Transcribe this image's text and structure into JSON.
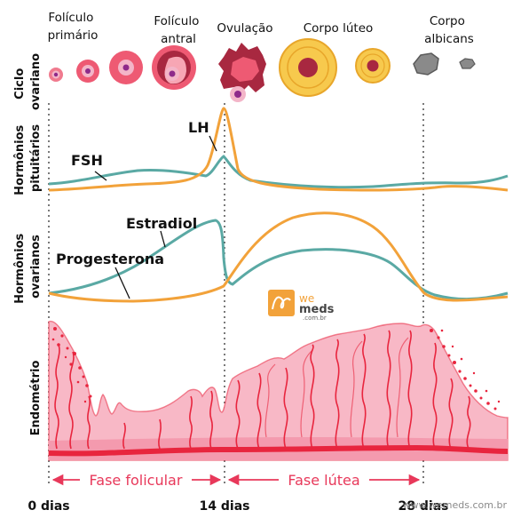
{
  "stages": [
    {
      "id": "primary",
      "label_lines": [
        "Folículo",
        "primário"
      ]
    },
    {
      "id": "antral",
      "label_lines": [
        "Folículo",
        "antral"
      ]
    },
    {
      "id": "ovulation",
      "label_lines": [
        "Ovulação"
      ]
    },
    {
      "id": "corpus_luteum",
      "label_lines": [
        "Corpo lúteo"
      ]
    },
    {
      "id": "corpus_albicans",
      "label_lines": [
        "Corpo",
        "albicans"
      ]
    }
  ],
  "rows": {
    "ovarian_cycle": [
      "Ciclo",
      "ovariano"
    ],
    "pituitary": [
      "Hormônios",
      "pituitários"
    ],
    "ovarian": [
      "Hormônios",
      "ovarianos"
    ],
    "endometrium": [
      "Endométrio"
    ]
  },
  "curves": {
    "lh": "LH",
    "fsh": "FSH",
    "estradiol": "Estradiol",
    "progesterone": "Progesterona"
  },
  "phases": {
    "follicular": "Fase folicular",
    "luteal": "Fase lútea"
  },
  "axis": {
    "day0": "0 dias",
    "day14": "14 dias",
    "day28": "28 dias"
  },
  "logo": {
    "we": "we",
    "meds": "meds",
    "domain": ".com.br"
  },
  "watermark": "www.wemeds.com.br",
  "colors": {
    "orange": "#f2a23a",
    "teal": "#5aa9a4",
    "pink": "#f8b4c4",
    "red": "#e8253e",
    "follicle": "#ee5a73",
    "corpus_luteum": "#f7c94d",
    "albicans": "#8a8a8a"
  }
}
